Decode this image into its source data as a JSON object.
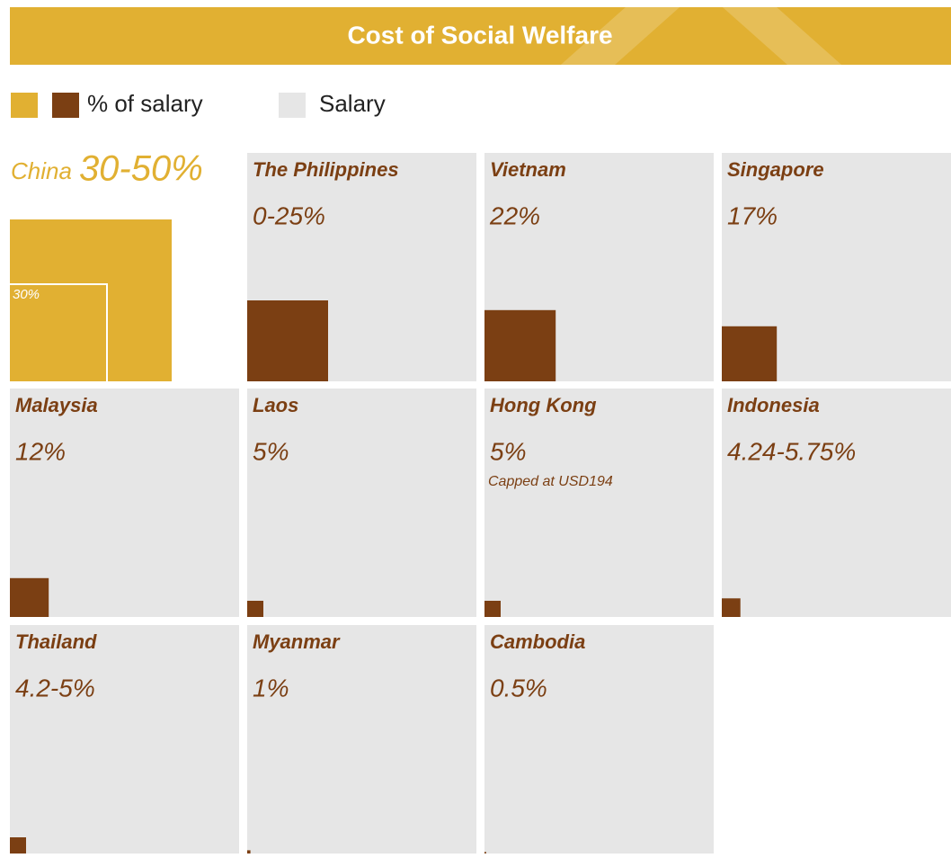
{
  "chart_data": {
    "type": "square-grid",
    "title": "Cost of Social Welfare",
    "legend": [
      {
        "name": "% of salary",
        "colors": [
          "#e1b032",
          "#7b3f13"
        ]
      },
      {
        "name": "Salary",
        "color": "#e6e6e6"
      }
    ],
    "categories": [
      "China",
      "The Philippines",
      "Vietnam",
      "Singapore",
      "Malaysia",
      "Laos",
      "Hong Kong",
      "Indonesia",
      "Thailand",
      "Myanmar",
      "Cambodia"
    ],
    "values": [
      50,
      25,
      22,
      17,
      12,
      5,
      5,
      5.75,
      5,
      1,
      0.5
    ],
    "value_labels": [
      "30-50%",
      "0-25%",
      "22%",
      "17%",
      "12%",
      "5%",
      "5%",
      "4.24-5.75%",
      "4.2-5%",
      "1%",
      "0.5%"
    ],
    "highlight": {
      "category": "China",
      "color": "#e1b032",
      "marker": {
        "value": 30,
        "label": "30%"
      }
    },
    "annotations": [
      {
        "category": "Hong Kong",
        "text": "Capped at USD194"
      }
    ]
  }
}
